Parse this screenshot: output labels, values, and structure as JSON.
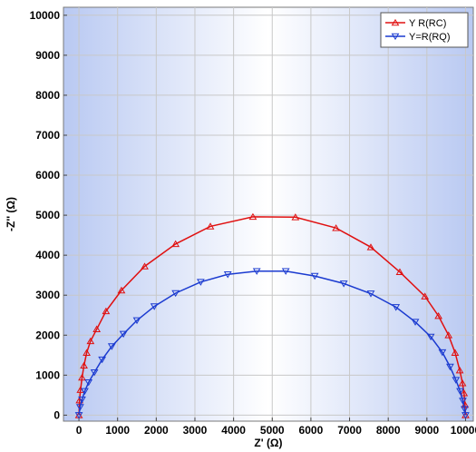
{
  "chart_data": {
    "type": "line",
    "title": "",
    "xlabel": "Z' (Ω)",
    "ylabel": "-Z'' (Ω)",
    "xlim": [
      -400,
      10200
    ],
    "ylim": [
      -150,
      10200
    ],
    "xticks": [
      0,
      1000,
      2000,
      3000,
      4000,
      5000,
      6000,
      7000,
      8000,
      9000,
      10000
    ],
    "yticks": [
      0,
      1000,
      2000,
      3000,
      4000,
      5000,
      6000,
      7000,
      8000,
      9000,
      10000
    ],
    "grid": true,
    "legend_position": "top-right",
    "series": [
      {
        "name": "Y  R(RC)",
        "color": "#e01010",
        "marker": "triangle-up",
        "x": [
          0,
          15,
          40,
          80,
          130,
          200,
          300,
          460,
          700,
          1100,
          1700,
          2500,
          3400,
          4500,
          5600,
          6650,
          7550,
          8300,
          8950,
          9300,
          9560,
          9730,
          9850,
          9920,
          9960,
          9985,
          10000
        ],
        "y": [
          0,
          370,
          630,
          940,
          1240,
          1560,
          1850,
          2150,
          2600,
          3120,
          3720,
          4280,
          4720,
          4960,
          4950,
          4680,
          4200,
          3580,
          2970,
          2480,
          2000,
          1560,
          1120,
          800,
          550,
          260,
          0
        ]
      },
      {
        "name": "Y=R(RQ)",
        "color": "#1a3ad0",
        "marker": "triangle-down",
        "x": [
          0,
          30,
          80,
          150,
          250,
          400,
          600,
          850,
          1150,
          1500,
          1950,
          2500,
          3150,
          3850,
          4600,
          5350,
          6100,
          6850,
          7550,
          8200,
          8700,
          9100,
          9400,
          9600,
          9750,
          9860,
          9930,
          9975,
          10000
        ],
        "y": [
          0,
          200,
          390,
          600,
          820,
          1070,
          1390,
          1720,
          2030,
          2370,
          2720,
          3050,
          3330,
          3520,
          3600,
          3600,
          3480,
          3290,
          3040,
          2700,
          2330,
          1960,
          1570,
          1210,
          880,
          600,
          360,
          150,
          0
        ]
      }
    ]
  }
}
